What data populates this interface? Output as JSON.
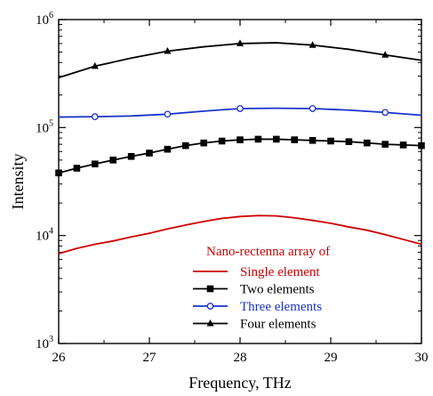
{
  "chart_data": {
    "type": "line",
    "title": "",
    "xlabel": "Frequency, THz",
    "ylabel": "Intensity",
    "xlim": [
      26,
      30
    ],
    "ylim": [
      1000,
      1000000
    ],
    "y_scale": "log",
    "x_ticks": [
      "26",
      "27",
      "28",
      "29",
      "30"
    ],
    "y_ticks": [
      {
        "base": "10",
        "exp": "3"
      },
      {
        "base": "10",
        "exp": "4"
      },
      {
        "base": "10",
        "exp": "5"
      },
      {
        "base": "10",
        "exp": "6"
      }
    ],
    "grid": false,
    "legend": {
      "title": "Nano-rectenna array of",
      "title_color": "#cc0000",
      "placement": "bottom-right"
    },
    "series": [
      {
        "name": "Single element",
        "color": "#cc0000",
        "text_color": "#cc0000",
        "marker": "none",
        "x": [
          26.0,
          26.2,
          26.4,
          26.6,
          26.8,
          27.0,
          27.2,
          27.4,
          27.6,
          27.8,
          28.0,
          28.2,
          28.4,
          28.6,
          28.8,
          29.0,
          29.2,
          29.4,
          29.6,
          29.8,
          30.0
        ],
        "y": [
          6800,
          7600,
          8300,
          8900,
          9700,
          10500,
          11500,
          12500,
          13500,
          14400,
          15000,
          15300,
          15200,
          14600,
          13800,
          13000,
          12000,
          11200,
          10200,
          9200,
          8300
        ]
      },
      {
        "name": "Two  elements",
        "color": "#000000",
        "text_color": "#000000",
        "marker": "square",
        "x": [
          26.0,
          26.2,
          26.4,
          26.6,
          26.8,
          27.0,
          27.2,
          27.4,
          27.6,
          27.8,
          28.0,
          28.2,
          28.4,
          28.6,
          28.8,
          29.0,
          29.2,
          29.4,
          29.6,
          29.8,
          30.0
        ],
        "y": [
          38000,
          42000,
          46000,
          50000,
          54000,
          58000,
          63000,
          68000,
          72000,
          75000,
          77000,
          78000,
          78000,
          77000,
          76000,
          75000,
          74000,
          72000,
          70000,
          69000,
          68000
        ]
      },
      {
        "name": "Three elements",
        "color": "#1a33cc",
        "text_color": "#1a33cc",
        "marker": "circle-open",
        "x": [
          26.0,
          26.4,
          26.8,
          27.2,
          27.6,
          28.0,
          28.4,
          28.8,
          29.2,
          29.6,
          30.0
        ],
        "y": [
          125000,
          126000,
          128000,
          133000,
          142000,
          150000,
          151000,
          150000,
          145000,
          138000,
          130000
        ],
        "marker_x": [
          26.4,
          27.2,
          28.0,
          28.8,
          29.6
        ]
      },
      {
        "name": "Four elements",
        "color": "#000000",
        "text_color": "#000000",
        "marker": "triangle",
        "x": [
          26.0,
          26.4,
          26.8,
          27.2,
          27.6,
          28.0,
          28.4,
          28.8,
          29.2,
          29.6,
          30.0
        ],
        "y": [
          290000,
          370000,
          440000,
          510000,
          560000,
          600000,
          610000,
          580000,
          530000,
          470000,
          420000
        ],
        "marker_x": [
          26.4,
          27.2,
          28.0,
          28.8,
          29.6
        ]
      }
    ]
  }
}
